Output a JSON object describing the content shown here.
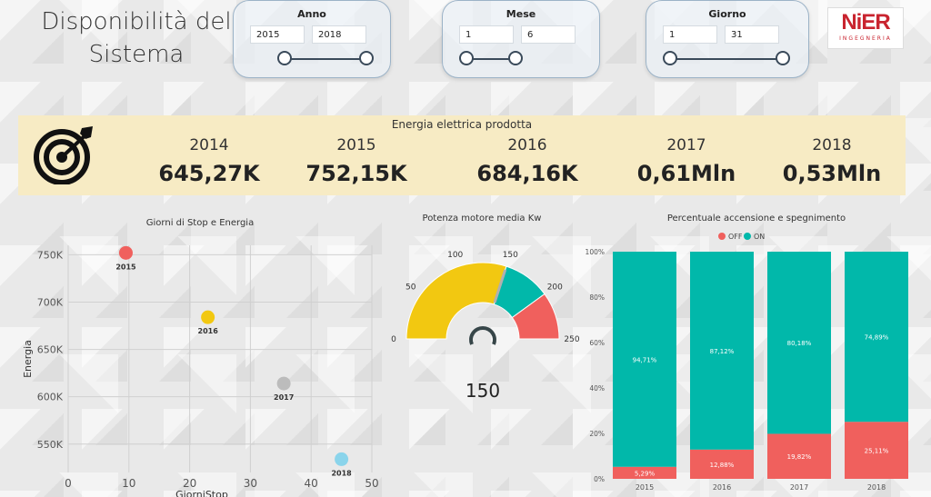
{
  "page_title": "Disponibilità del Sistema",
  "slicers": {
    "anno": {
      "label": "Anno",
      "from": "2015",
      "to": "2018",
      "range_fraction": [
        0.0,
        1.0
      ]
    },
    "mese": {
      "label": "Mese",
      "from": "1",
      "to": "6",
      "range_fraction": [
        0.0,
        0.5
      ]
    },
    "giorno": {
      "label": "Giorno",
      "from": "1",
      "to": "31",
      "range_fraction": [
        0.0,
        1.0
      ]
    }
  },
  "logo": {
    "main": "NiER",
    "sub": "INGEGNERIA"
  },
  "kpi": {
    "title": "Energia elettrica prodotta",
    "items": [
      {
        "year": "2014",
        "value": "645,27K"
      },
      {
        "year": "2015",
        "value": "752,15K"
      },
      {
        "year": "2016",
        "value": "684,16K"
      },
      {
        "year": "2017",
        "value": "0,61Mln"
      },
      {
        "year": "2018",
        "value": "0,53Mln"
      }
    ]
  },
  "colors": {
    "red": "#f0605d",
    "yellow": "#f2c811",
    "teal": "#01b8aa",
    "grey": "#bcbcbc",
    "lightblue": "#8ad4eb",
    "dark": "#374649"
  },
  "chart_data": [
    {
      "type": "scatter",
      "title": "Giorni di Stop e Energia",
      "xlabel": "GiorniStop",
      "ylabel": "Energia",
      "xlim": [
        0,
        50
      ],
      "ylim": [
        520,
        760
      ],
      "x_ticks": [
        "0",
        "10",
        "20",
        "30",
        "40",
        "50"
      ],
      "y_ticks": [
        "550K",
        "600K",
        "650K",
        "700K",
        "750K"
      ],
      "y_tick_values": [
        550,
        600,
        650,
        700,
        750
      ],
      "x_tick_values": [
        0,
        10,
        20,
        30,
        40,
        50
      ],
      "grid": true,
      "points": [
        {
          "label": "2015",
          "x": 9.5,
          "y": 752,
          "color": "#f0605d"
        },
        {
          "label": "2016",
          "x": 23,
          "y": 684,
          "color": "#f2c811"
        },
        {
          "label": "2017",
          "x": 35.5,
          "y": 614,
          "color": "#bcbcbc"
        },
        {
          "label": "2018",
          "x": 45,
          "y": 534,
          "color": "#8ad4eb"
        }
      ]
    },
    {
      "type": "gauge",
      "title": "Potenza motore media Kw",
      "value": 150,
      "value_label": "150",
      "min": 0,
      "max": 250,
      "ticks": [
        "0",
        "50",
        "100",
        "150",
        "200",
        "250"
      ],
      "tick_values": [
        0,
        50,
        100,
        150,
        200,
        250
      ],
      "bands": [
        {
          "from": 0,
          "to": 150,
          "color": "#f2c811"
        },
        {
          "from": 150,
          "to": 200,
          "color": "#01b8aa"
        },
        {
          "from": 200,
          "to": 250,
          "color": "#f0605d"
        }
      ]
    },
    {
      "type": "bar",
      "stacked": "percent",
      "title": "Percentuale accensione e spegnimento",
      "legend": "top",
      "categories": [
        "2015",
        "2016",
        "2017",
        "2018"
      ],
      "y_ticks": [
        "0%",
        "20%",
        "40%",
        "60%",
        "80%",
        "100%"
      ],
      "y_tick_values": [
        0,
        20,
        40,
        60,
        80,
        100
      ],
      "series": [
        {
          "name": "OFF",
          "color": "#f0605d",
          "values": [
            5.29,
            12.88,
            19.82,
            25.11
          ],
          "labels": [
            "5,29%",
            "12,88%",
            "19,82%",
            "25,11%"
          ]
        },
        {
          "name": "ON",
          "color": "#01b8aa",
          "values": [
            94.71,
            87.12,
            80.18,
            74.89
          ],
          "labels": [
            "94,71%",
            "87,12%",
            "80,18%",
            "74,89%"
          ]
        }
      ]
    }
  ]
}
